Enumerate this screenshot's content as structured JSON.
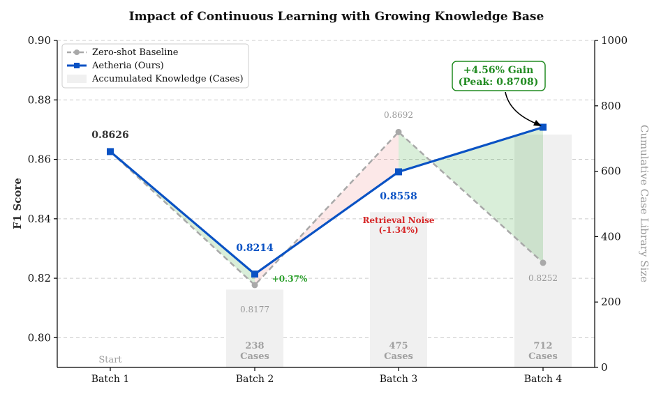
{
  "chart_data": {
    "type": "line",
    "title": "Impact of Continuous Learning with Growing Knowledge Base",
    "xlabel": "",
    "ylabel": "F1 Score",
    "y2label": "Cumulative Case Library Size",
    "categories": [
      "Batch 1",
      "Batch 2",
      "Batch 3",
      "Batch 4"
    ],
    "ylim": [
      0.79,
      0.9
    ],
    "y2lim": [
      0,
      1000
    ],
    "yticks": [
      "0.80",
      "0.82",
      "0.84",
      "0.86",
      "0.88",
      "0.90"
    ],
    "y2ticks": [
      "0",
      "200",
      "400",
      "600",
      "800",
      "1000"
    ],
    "grid": true,
    "legend_position": "top-left",
    "series": [
      {
        "name": "Zero-shot Baseline",
        "values": [
          0.8626,
          0.8177,
          0.8692,
          0.8252
        ],
        "labels": [
          "",
          "0.8177",
          "0.8692",
          "0.8252"
        ],
        "color": "#a9a9a9",
        "style": "dashed",
        "marker": "circle"
      },
      {
        "name": "Aetheria (Ours)",
        "values": [
          0.8626,
          0.8214,
          0.8558,
          0.8708
        ],
        "labels": [
          "0.8626",
          "0.8214",
          "0.8558",
          ""
        ],
        "color": "#0a52c4",
        "style": "solid",
        "marker": "square"
      },
      {
        "name": "Accumulated Knowledge (Cases)",
        "type": "bar",
        "axis": "right",
        "values": [
          0,
          238,
          475,
          712
        ],
        "labels": [
          "Start",
          "238\nCases",
          "475\nCases",
          "712\nCases"
        ],
        "color": "#f0f0f0"
      }
    ],
    "annotations": [
      {
        "text": "+0.37%",
        "color": "#2ca02c"
      },
      {
        "text": "Retrieval Noise\n(-1.34%)",
        "color": "#d62728"
      },
      {
        "text": "+4.56% Gain\n(Peak: 0.8708)",
        "color": "#228b22"
      }
    ],
    "fill_colors": {
      "gain": "#2ca02c",
      "loss": "#f08080"
    }
  }
}
